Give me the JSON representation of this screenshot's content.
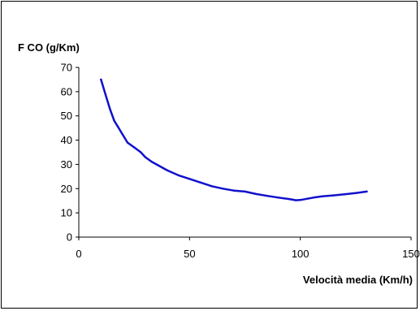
{
  "chart_data": {
    "type": "line",
    "title": "",
    "ylabel": "F CO (g/Km)",
    "xlabel": "Velocità media (Km/h)",
    "xlim": [
      0,
      150
    ],
    "ylim": [
      0,
      70
    ],
    "x_ticks": [
      "0",
      "50",
      "100",
      "150"
    ],
    "y_ticks": [
      "0",
      "10",
      "20",
      "30",
      "40",
      "50",
      "60",
      "70"
    ],
    "grid": false,
    "legend": "none",
    "series": [
      {
        "color": "#1111cc",
        "x": [
          10,
          12,
          14,
          16,
          18,
          20,
          22,
          25,
          28,
          30,
          33,
          36,
          40,
          45,
          50,
          55,
          60,
          65,
          70,
          75,
          80,
          85,
          90,
          95,
          98,
          100,
          103,
          106,
          110,
          115,
          120,
          125,
          130
        ],
        "y": [
          65,
          59,
          53,
          48,
          45,
          42,
          39,
          37,
          35,
          33,
          31,
          29.5,
          27.5,
          25.5,
          24,
          22.5,
          21,
          20,
          19.2,
          18.8,
          17.8,
          17,
          16.3,
          15.7,
          15.2,
          15.3,
          15.8,
          16.3,
          16.8,
          17.2,
          17.7,
          18.2,
          18.8
        ]
      }
    ]
  }
}
